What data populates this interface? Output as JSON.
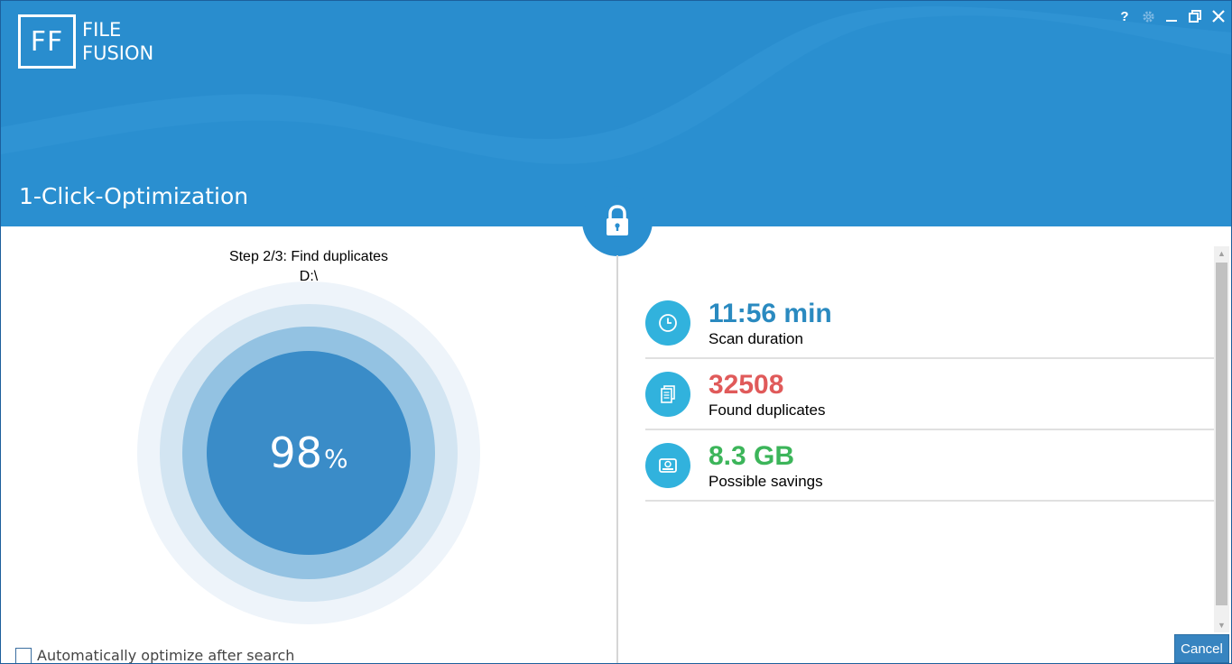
{
  "app": {
    "logo_initials": "FF",
    "logo_line1": "FILE",
    "logo_line2": "FUSION",
    "page_title": "1-Click-Optimization"
  },
  "window_controls": {
    "help": "?",
    "settings_icon": "gear-icon",
    "minimize_icon": "minimize-icon",
    "restore_icon": "restore-icon",
    "close_icon": "close-icon"
  },
  "progress": {
    "step_label": "Step 2/3: Find duplicates",
    "current_path": "D:\\",
    "percent_value": "98",
    "percent_sign": "%",
    "percent_fraction": 0.98
  },
  "stats": [
    {
      "value": "11:56 min",
      "label": "Scan duration",
      "icon": "clock-icon",
      "color": "#2a8ac0"
    },
    {
      "value": "32508",
      "label": "Found duplicates",
      "icon": "documents-icon",
      "color": "#e05a5a"
    },
    {
      "value": "8.3 GB",
      "label": "Possible savings",
      "icon": "hard-drive-icon",
      "color": "#3cb55a"
    }
  ],
  "options": {
    "auto_optimize_label": "Automatically optimize after search",
    "auto_optimize_checked": false
  },
  "buttons": {
    "cancel": "Cancel"
  },
  "colors": {
    "header": "#2a8fd0",
    "accent_icon": "#31b2dd",
    "progress_core": "#3a8cc8"
  }
}
